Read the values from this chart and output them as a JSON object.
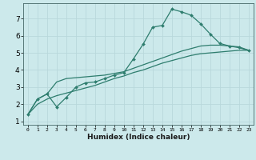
{
  "xlabel": "Humidex (Indice chaleur)",
  "background_color": "#cce9eb",
  "grid_color": "#b8d8db",
  "line_color": "#2e7d6e",
  "xlim": [
    -0.5,
    23.5
  ],
  "ylim": [
    0.8,
    7.9
  ],
  "xticks": [
    0,
    1,
    2,
    3,
    4,
    5,
    6,
    7,
    8,
    9,
    10,
    11,
    12,
    13,
    14,
    15,
    16,
    17,
    18,
    19,
    20,
    21,
    22,
    23
  ],
  "yticks": [
    1,
    2,
    3,
    4,
    5,
    6,
    7
  ],
  "line1_x": [
    0,
    1,
    2,
    3,
    4,
    5,
    6,
    7,
    8,
    9,
    10,
    11,
    12,
    13,
    14,
    15,
    16,
    17,
    18,
    19,
    20,
    21,
    22,
    23
  ],
  "line1_y": [
    1.4,
    2.3,
    2.6,
    1.85,
    2.4,
    3.0,
    3.25,
    3.3,
    3.5,
    3.7,
    3.85,
    4.65,
    5.5,
    6.5,
    6.6,
    7.55,
    7.4,
    7.2,
    6.7,
    6.1,
    5.55,
    5.4,
    5.35,
    5.15
  ],
  "line2_x": [
    0,
    1,
    2,
    3,
    4,
    5,
    6,
    7,
    8,
    9,
    10,
    11,
    12,
    13,
    14,
    15,
    16,
    17,
    18,
    19,
    20,
    21,
    22,
    23
  ],
  "line2_y": [
    1.4,
    2.3,
    2.6,
    3.3,
    3.5,
    3.55,
    3.6,
    3.65,
    3.7,
    3.8,
    3.9,
    4.1,
    4.3,
    4.5,
    4.7,
    4.9,
    5.1,
    5.25,
    5.4,
    5.45,
    5.45,
    5.4,
    5.3,
    5.15
  ],
  "line3_x": [
    0,
    1,
    2,
    3,
    4,
    5,
    6,
    7,
    8,
    9,
    10,
    11,
    12,
    13,
    14,
    15,
    16,
    17,
    18,
    19,
    20,
    21,
    22,
    23
  ],
  "line3_y": [
    1.4,
    2.0,
    2.3,
    2.5,
    2.65,
    2.8,
    2.95,
    3.1,
    3.3,
    3.5,
    3.65,
    3.85,
    4.0,
    4.2,
    4.4,
    4.55,
    4.7,
    4.85,
    4.95,
    5.0,
    5.05,
    5.1,
    5.15,
    5.15
  ]
}
